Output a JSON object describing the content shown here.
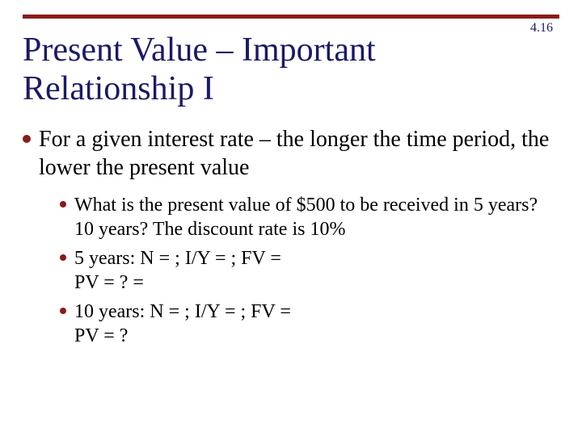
{
  "colors": {
    "topbar": "#8b1a1a",
    "title_text": "#1a1a66",
    "slide_number_text": "#1a1a66",
    "body_text": "#000000",
    "bullet1": "#8b1a1a",
    "bullet2": "#8b1a1a",
    "background": "#ffffff"
  },
  "slide_number": "4.16",
  "title": "Present Value – Important Relationship I",
  "body": {
    "item": {
      "text": "For a given interest rate – the longer the time period, the lower the present value",
      "sub": [
        "What is the present value of $500 to be received in 5 years? 10 years? The discount rate is 10%",
        "5 years: N =  ; I/Y =   ; FV = \nPV = ? =",
        "10 years: N =  ; I/Y =  ; FV = \nPV = ?"
      ]
    }
  }
}
